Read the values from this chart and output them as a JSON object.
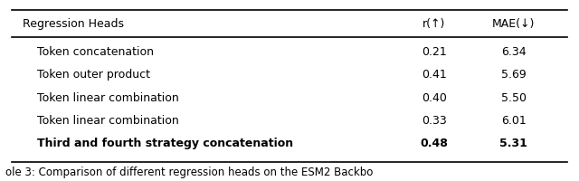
{
  "headers": [
    "Regression Heads",
    "r(↑)",
    "MAE(↓)"
  ],
  "rows": [
    [
      "Token concatenation",
      "0.21",
      "6.34",
      false
    ],
    [
      "Token outer product",
      "0.41",
      "5.69",
      false
    ],
    [
      "Token linear combination",
      "0.40",
      "5.50",
      false
    ],
    [
      "Token linear combination",
      "0.33",
      "6.01",
      false
    ],
    [
      "Third and fourth strategy concatenation",
      "0.48",
      "5.31",
      true
    ]
  ],
  "caption": "ole 3: Comparison of different regression heads on the ESM2 Backbo",
  "bg_color": "#ffffff",
  "font_size": 9.0
}
